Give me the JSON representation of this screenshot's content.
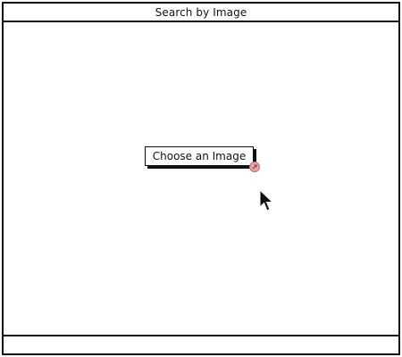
{
  "window": {
    "title": "Search by Image"
  },
  "main": {
    "choose_button_label": "Choose an Image"
  },
  "icons": {
    "badge": "external-link-icon",
    "cursor": "mouse-pointer-icon"
  },
  "colors": {
    "border": "#111111",
    "background": "#ffffff",
    "badge": "#e4a3a3"
  }
}
